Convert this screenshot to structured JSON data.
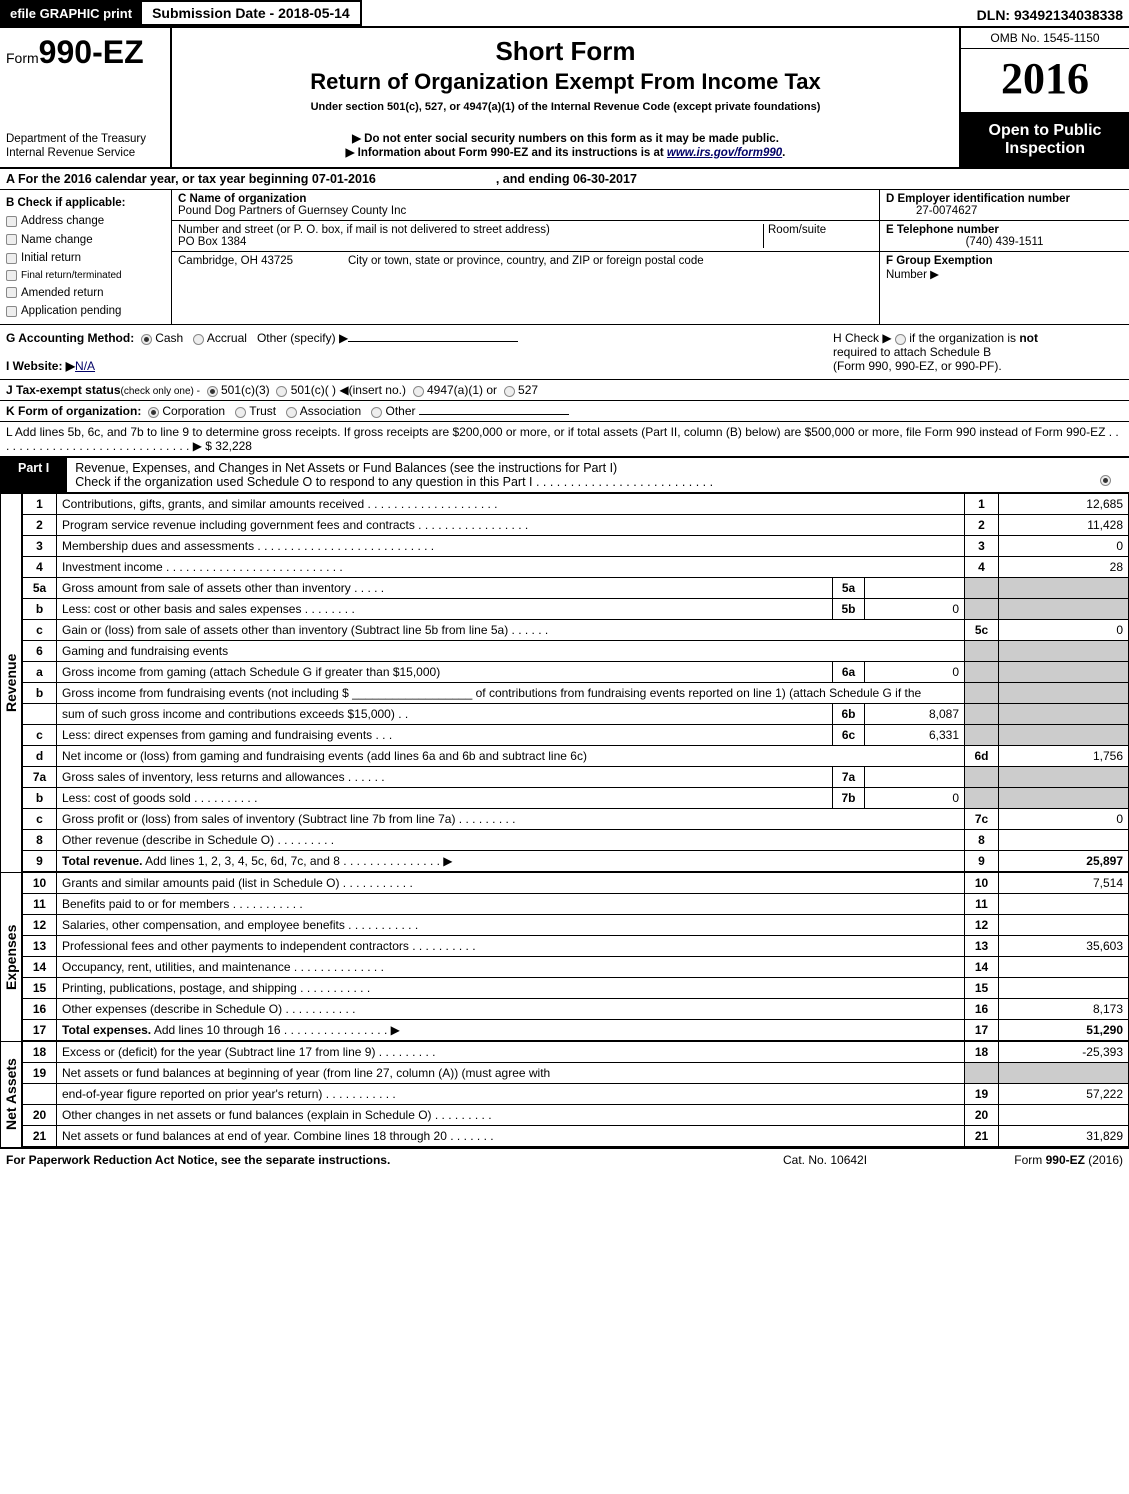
{
  "top": {
    "efile_btn": "efile GRAPHIC print",
    "sub_date_label": "Submission Date - 2018-05-14",
    "dln": "DLN: 93492134038338"
  },
  "header": {
    "form_label": "Form",
    "form_no": "990-EZ",
    "dept1": "Department of the Treasury",
    "dept2": "Internal Revenue Service",
    "title1": "Short Form",
    "title2": "Return of Organization Exempt From Income Tax",
    "subtitle": "Under section 501(c), 527, or 4947(a)(1) of the Internal Revenue Code (except private foundations)",
    "note1": "▶ Do not enter social security numbers on this form as it may be made public.",
    "note2_pre": "▶ Information about Form 990-EZ and its instructions is at ",
    "note2_link": "www.irs.gov/form990",
    "note2_post": ".",
    "omb": "OMB No. 1545-1150",
    "year": "2016",
    "inspect1": "Open to Public",
    "inspect2": "Inspection"
  },
  "A": {
    "text_pre": "A  For the 2016 calendar year, or tax year beginning ",
    "begin": "07-01-2016",
    "mid": ", and ending ",
    "end": "06-30-2017"
  },
  "B": {
    "label": "B  Check if applicable:",
    "opts": [
      "Address change",
      "Name change",
      "Initial return",
      "Final return/terminated",
      "Amended return",
      "Application pending"
    ]
  },
  "C": {
    "name_lbl": "C Name of organization",
    "name": "Pound Dog Partners of Guernsey County Inc",
    "street_lbl": "Number and street (or P. O. box, if mail is not delivered to street address)",
    "room_lbl": "Room/suite",
    "street": "PO Box 1384",
    "city_lbl": "City or town, state or province, country, and ZIP or foreign postal code",
    "city": "Cambridge, OH  43725"
  },
  "D": {
    "lbl": "D Employer identification number",
    "val": "27-0074627"
  },
  "E": {
    "lbl": "E Telephone number",
    "val": "(740) 439-1511"
  },
  "F": {
    "lbl": "F Group Exemption",
    "lbl2": "Number   ▶"
  },
  "G": {
    "lbl": "G Accounting Method:",
    "cash": "Cash",
    "accrual": "Accrual",
    "other": "Other (specify) ▶"
  },
  "H": {
    "text1": "H   Check ▶",
    "text2": "if the organization is ",
    "not": "not",
    "text3": "required to attach Schedule B",
    "text4": "(Form 990, 990-EZ, or 990-PF)."
  },
  "I": {
    "lbl": "I Website: ▶",
    "val": "N/A"
  },
  "J": {
    "lbl": "J Tax-exempt status",
    "paren": "(check only one) -",
    "o1": "501(c)(3)",
    "o2": "501(c)(  ) ◀(insert no.)",
    "o3": "4947(a)(1) or",
    "o4": "527"
  },
  "K": {
    "lbl": "K Form of organization:",
    "o1": "Corporation",
    "o2": "Trust",
    "o3": "Association",
    "o4": "Other"
  },
  "L": {
    "text": "L Add lines 5b, 6c, and 7b to line 9 to determine gross receipts. If gross receipts are $200,000 or more, or if total assets (Part II, column (B) below) are $500,000 or more, file Form 990 instead of Form 990-EZ  .  .  .  .  .  .  .  .  .  .  .  .  .  .  .  .  .  .  .  .  .  .  .  .  .  .  .  .  .  .  ▶ ",
    "val": "$ 32,228"
  },
  "partI": {
    "label": "Part I",
    "title": "Revenue, Expenses, and Changes in Net Assets or Fund Balances (see the instructions for Part I)",
    "check_line": "Check if the organization used Schedule O to respond to any question in this Part I .  .  .  .  .  .  .  .  .  .  .  .  .  .  .  .  .  .  .  .  .  .  .  .  .  ."
  },
  "side_labels": {
    "rev": "Revenue",
    "exp": "Expenses",
    "na": "Net Assets"
  },
  "revenue": [
    {
      "n": "1",
      "d": "Contributions, gifts, grants, and similar amounts received  .  .  .  .  .  .  .  .  .  .  .  .  .  .  .  .  .  .  .  .",
      "ln": "1",
      "v": "12,685"
    },
    {
      "n": "2",
      "d": "Program service revenue including government fees and contracts  .  .  .  .  .  .  .  .  .  .  .  .  .  .  .  .  .",
      "ln": "2",
      "v": "11,428"
    },
    {
      "n": "3",
      "d": "Membership dues and assessments  .  .  .  .  .  .  .  .  .  .  .  .  .  .  .  .  .  .  .  .  .  .  .  .  .  .  .",
      "ln": "3",
      "v": "0"
    },
    {
      "n": "4",
      "d": "Investment income  .  .  .  .  .  .  .  .  .  .  .  .  .  .  .  .  .  .  .  .  .  .  .  .  .  .  .",
      "ln": "4",
      "v": "28"
    },
    {
      "n": "5a",
      "d": "Gross amount from sale of assets other than inventory  .  .  .  .  .",
      "sn": "5a",
      "sv": ""
    },
    {
      "n": "b",
      "d": "Less: cost or other basis and sales expenses .  .  .  .  .  .  .  .",
      "sn": "5b",
      "sv": "0"
    },
    {
      "n": "c",
      "d": "Gain or (loss) from sale of assets other than inventory (Subtract line 5b from line 5a)                  .    .    .    .    .    .",
      "ln": "5c",
      "v": "0"
    },
    {
      "n": "6",
      "d": "Gaming and fundraising events"
    },
    {
      "n": "a",
      "d": "Gross income from gaming (attach Schedule G if greater than $15,000)",
      "sn": "6a",
      "sv": "0"
    },
    {
      "n": "b",
      "d": "Gross income from fundraising events (not including $ __________________ of contributions from fundraising events reported on line 1) (attach Schedule G if the"
    },
    {
      "n": "",
      "d": "sum of such gross income and contributions exceeds $15,000)           .    .",
      "sn": "6b",
      "sv": "8,087"
    },
    {
      "n": "c",
      "d": "Less: direct expenses from gaming and fundraising events               .    .    .",
      "sn": "6c",
      "sv": "6,331"
    },
    {
      "n": "d",
      "d": "Net income or (loss) from gaming and fundraising events (add lines 6a and 6b and subtract line 6c)",
      "ln": "6d",
      "v": "1,756"
    },
    {
      "n": "7a",
      "d": "Gross sales of inventory, less returns and allowances               .    .    .    .    .    .",
      "sn": "7a",
      "sv": ""
    },
    {
      "n": "b",
      "d": "Less: cost of goods sold                         .    .    .    .    .    .    .    .    .    .",
      "sn": "7b",
      "sv": "0"
    },
    {
      "n": "c",
      "d": "Gross profit or (loss) from sales of inventory (Subtract line 7b from line 7a)            .    .    .    .    .    .    .    .    .",
      "ln": "7c",
      "v": "0"
    },
    {
      "n": "8",
      "d": "Other revenue (describe in Schedule O)                                    .    .    .    .    .    .    .    .    .",
      "ln": "8",
      "v": ""
    },
    {
      "n": "9",
      "d": "<b>Total revenue.</b> Add lines 1, 2, 3, 4, 5c, 6d, 7c, and 8          .    .    .    .    .    .    .    .    .    .    .    .    .    .    .  ▶",
      "ln": "9",
      "v": "25,897",
      "bold": true
    }
  ],
  "expenses": [
    {
      "n": "10",
      "d": "Grants and similar amounts paid (list in Schedule O)                    .    .    .    .    .    .    .    .    .    .    .",
      "ln": "10",
      "v": "7,514"
    },
    {
      "n": "11",
      "d": "Benefits paid to or for members                                        .    .    .    .    .    .    .    .    .    .    .",
      "ln": "11",
      "v": ""
    },
    {
      "n": "12",
      "d": "Salaries, other compensation, and employee benefits               .    .    .    .    .    .    .    .    .    .    .",
      "ln": "12",
      "v": ""
    },
    {
      "n": "13",
      "d": "Professional fees and other payments to independent contractors       .    .    .    .    .    .    .    .    .    .",
      "ln": "13",
      "v": "35,603"
    },
    {
      "n": "14",
      "d": "Occupancy, rent, utilities, and maintenance            .    .    .    .    .    .    .    .    .    .    .    .    .    .",
      "ln": "14",
      "v": ""
    },
    {
      "n": "15",
      "d": "Printing, publications, postage, and shipping                          .    .    .    .    .    .    .    .    .    .    .",
      "ln": "15",
      "v": ""
    },
    {
      "n": "16",
      "d": "Other expenses (describe in Schedule O)                              .    .    .    .    .    .    .    .    .    .    .",
      "ln": "16",
      "v": "8,173"
    },
    {
      "n": "17",
      "d": "<b>Total expenses.</b> Add lines 10 through 16              .    .    .    .    .    .    .    .    .    .    .    .    .    .    .    .  ▶",
      "ln": "17",
      "v": "51,290",
      "bold": true
    }
  ],
  "netassets": [
    {
      "n": "18",
      "d": "Excess or (deficit) for the year (Subtract line 17 from line 9)                .    .    .    .    .    .    .    .    .",
      "ln": "18",
      "v": "-25,393"
    },
    {
      "n": "19",
      "d": "Net assets or fund balances at beginning of year (from line 27, column (A)) (must agree with"
    },
    {
      "n": "",
      "d": "end-of-year figure reported on prior year's return)                    .    .    .    .    .    .    .    .    .    .    .",
      "ln": "19",
      "v": "57,222"
    },
    {
      "n": "20",
      "d": "Other changes in net assets or fund balances (explain in Schedule O)       .    .    .    .    .    .    .    .    .",
      "ln": "20",
      "v": ""
    },
    {
      "n": "21",
      "d": "Net assets or fund balances at end of year. Combine lines 18 through 20               .    .    .    .    .    .    .",
      "ln": "21",
      "v": "31,829"
    }
  ],
  "footer": {
    "left": "For Paperwork Reduction Act Notice, see the separate instructions.",
    "mid": "Cat. No. 10642I",
    "right_pre": "Form ",
    "right_bold": "990-EZ",
    "right_post": " (2016)"
  }
}
